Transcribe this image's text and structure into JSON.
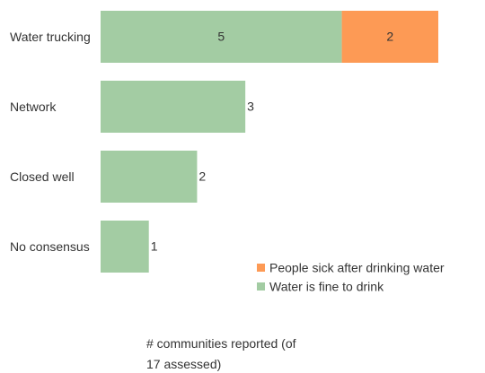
{
  "chart_data": {
    "type": "stacked-bar-horizontal",
    "categories": [
      "Water trucking",
      "Network",
      "Closed well",
      "No consensus"
    ],
    "series": [
      {
        "name": "Water is fine to drink",
        "color": "#a3cca3",
        "values": [
          5,
          3,
          2,
          1
        ]
      },
      {
        "name": "People sick after drinking water",
        "color": "#fd9a55",
        "values": [
          2,
          null,
          null,
          null
        ]
      }
    ],
    "x_label": "# communities reported (of 17 assessed)"
  }
}
